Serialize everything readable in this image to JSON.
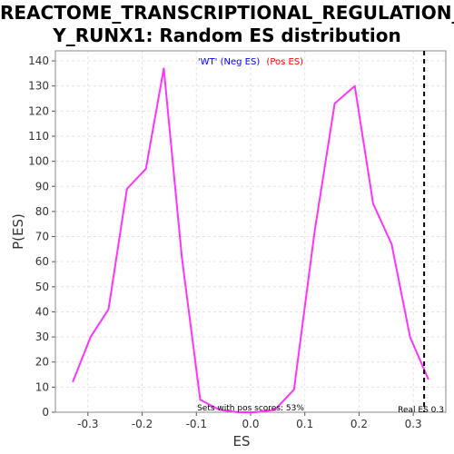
{
  "chart_data": {
    "type": "line",
    "title_line1": "REACTOME_TRANSCRIPTIONAL_REGULATION_B",
    "title_line2": "Y_RUNX1: Random ES distribution",
    "xlabel": "ES",
    "ylabel": "P(ES)",
    "xlim": [
      -0.36,
      0.36
    ],
    "ylim": [
      0,
      144
    ],
    "x_ticks": [
      -0.3,
      -0.2,
      -0.1,
      0.0,
      0.1,
      0.2,
      0.3
    ],
    "x_tick_labels": [
      "-0.3",
      "-0.2",
      "-0.1",
      "0.0",
      "0.1",
      "0.2",
      "0.3"
    ],
    "y_ticks": [
      0,
      10,
      20,
      30,
      40,
      50,
      60,
      70,
      80,
      90,
      100,
      110,
      120,
      130,
      140
    ],
    "y_tick_labels": [
      "0",
      "10",
      "20",
      "30",
      "40",
      "50",
      "60",
      "70",
      "80",
      "90",
      "100",
      "110",
      "120",
      "130",
      "140"
    ],
    "grid": true,
    "legend": [
      {
        "label": "'WT' (Neg ES)",
        "color": "#0000ff"
      },
      {
        "label": "(Pos ES)",
        "color": "#ff0000"
      }
    ],
    "series": [
      {
        "color": "#ff33ff",
        "x": [
          -0.328,
          -0.295,
          -0.262,
          -0.228,
          -0.193,
          -0.16,
          -0.127,
          -0.093,
          -0.058,
          -0.024,
          0.01,
          0.045,
          0.08,
          0.118,
          0.155,
          0.192,
          0.226,
          0.26,
          0.294,
          0.328
        ],
        "values": [
          12,
          30,
          41,
          89,
          97,
          137,
          62,
          5,
          1,
          0,
          0,
          1,
          9,
          72,
          123,
          130,
          83,
          67,
          30,
          13
        ]
      }
    ],
    "real_es_line": 0.32,
    "annotations": {
      "pos_scores": "Sets with pos scores: 53%",
      "real_es": "Real ES 0.3"
    }
  }
}
